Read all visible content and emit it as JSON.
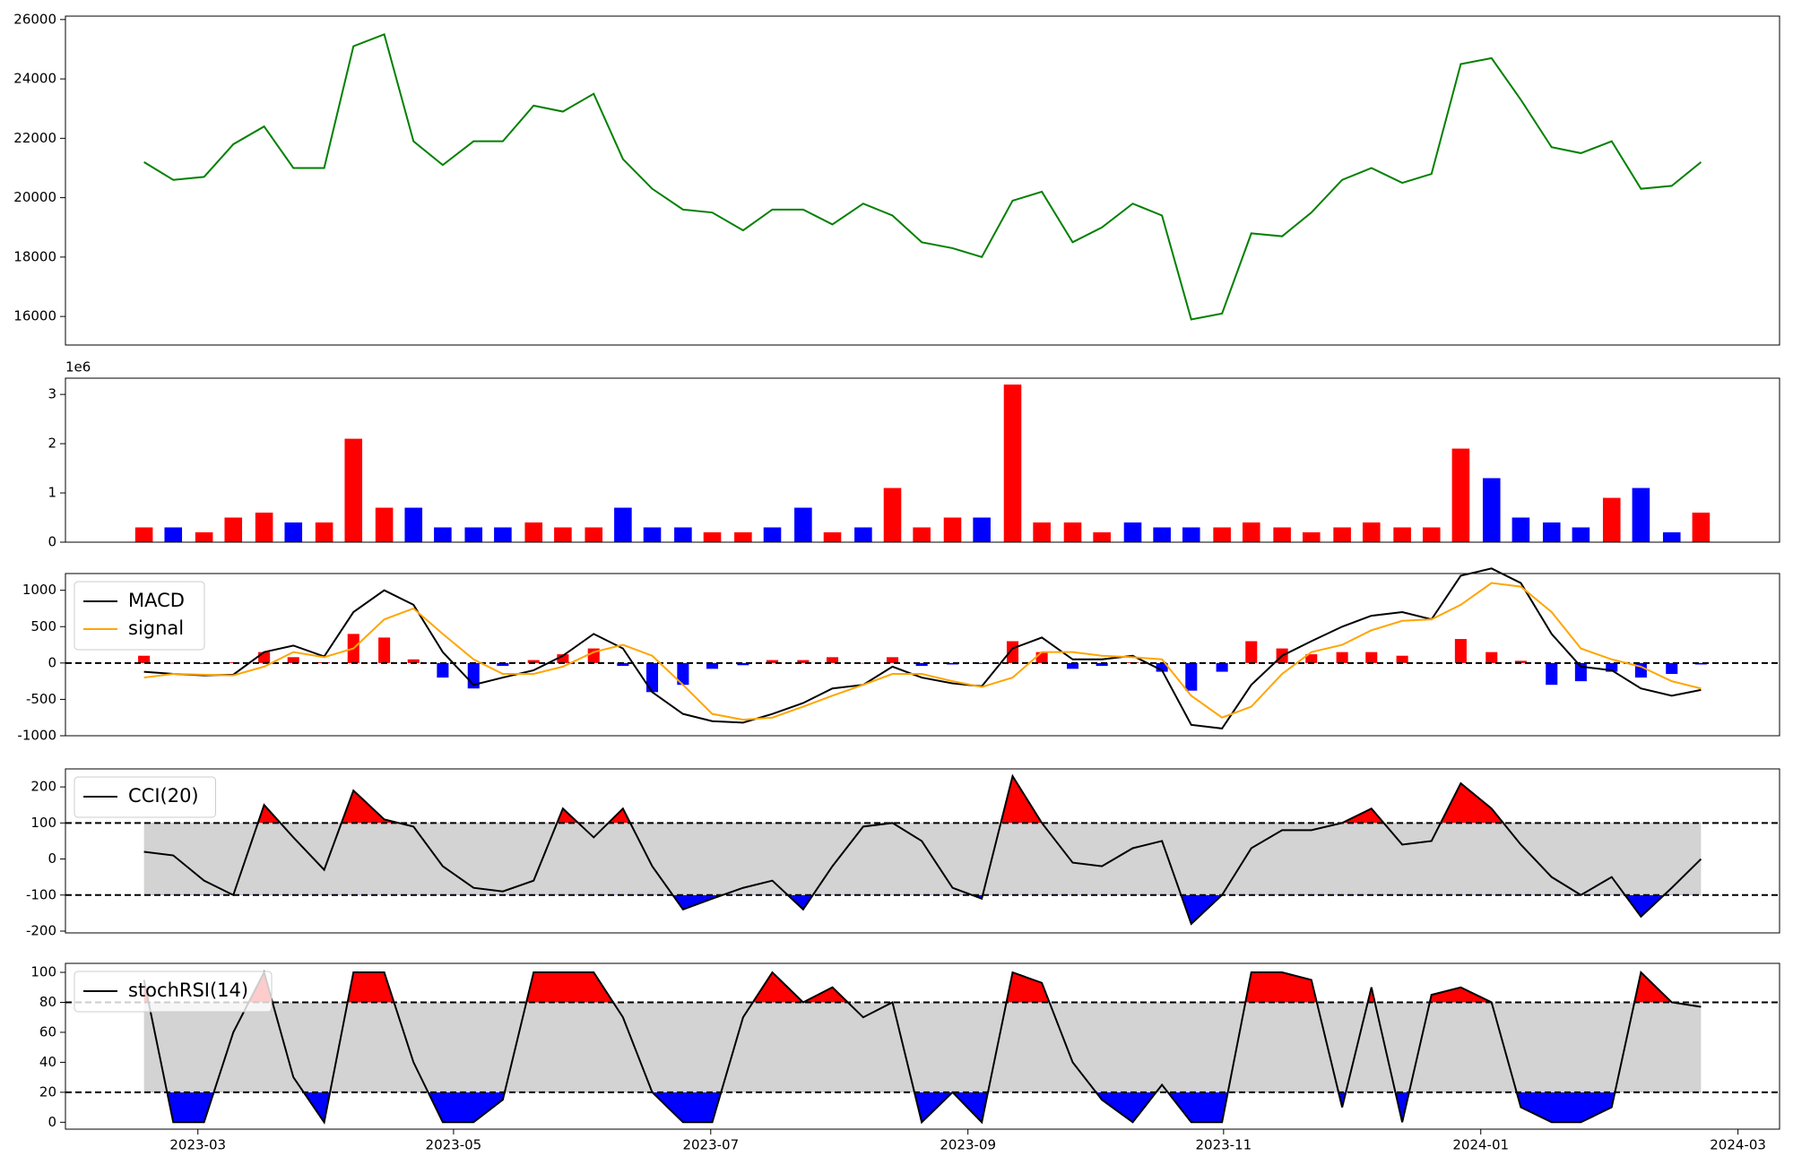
{
  "chart_data": [
    {
      "type": "line",
      "x": [
        2023.132,
        2023.151,
        2023.171,
        2023.19,
        2023.21,
        2023.229,
        2023.249,
        2023.268,
        2023.288,
        2023.307,
        2023.326,
        2023.346,
        2023.365,
        2023.385,
        2023.404,
        2023.424,
        2023.443,
        2023.462,
        2023.482,
        2023.501,
        2023.521,
        2023.54,
        2023.56,
        2023.579,
        2023.599,
        2023.618,
        2023.637,
        2023.657,
        2023.676,
        2023.696,
        2023.715,
        2023.735,
        2023.754,
        2023.774,
        2023.793,
        2023.812,
        2023.832,
        2023.851,
        2023.871,
        2023.89,
        2023.91,
        2023.929,
        2023.949,
        2023.968,
        2023.987,
        2024.007,
        2024.026,
        2024.046,
        2024.065,
        2024.085,
        2024.104,
        2024.124,
        2024.143
      ],
      "series": [
        {
          "color": "green",
          "values": [
            21200,
            20600,
            20700,
            21800,
            22400,
            21000,
            21000,
            25100,
            25500,
            21900,
            21100,
            21900,
            21900,
            23100,
            22900,
            23500,
            21300,
            20300,
            19600,
            19500,
            18900,
            19600,
            19600,
            19100,
            19800,
            19400,
            18500,
            18300,
            18000,
            19900,
            20200,
            18500,
            19000,
            19800,
            19400,
            15900,
            16100,
            18800,
            18700,
            19500,
            20600,
            21000,
            20500,
            20800,
            24500,
            24700,
            23300,
            21700,
            21500,
            21900,
            20300,
            20400,
            21200
          ]
        }
      ],
      "xlim": [
        2023.081,
        2024.194
      ],
      "ylim": [
        15038,
        26115
      ],
      "yticks": [
        16000,
        18000,
        20000,
        22000,
        24000,
        26000
      ]
    },
    {
      "type": "bar",
      "x": [
        2023.132,
        2023.151,
        2023.171,
        2023.19,
        2023.21,
        2023.229,
        2023.249,
        2023.268,
        2023.288,
        2023.307,
        2023.326,
        2023.346,
        2023.365,
        2023.385,
        2023.404,
        2023.424,
        2023.443,
        2023.462,
        2023.482,
        2023.501,
        2023.521,
        2023.54,
        2023.56,
        2023.579,
        2023.599,
        2023.618,
        2023.637,
        2023.657,
        2023.676,
        2023.696,
        2023.715,
        2023.735,
        2023.754,
        2023.774,
        2023.793,
        2023.812,
        2023.832,
        2023.851,
        2023.871,
        2023.89,
        2023.91,
        2023.929,
        2023.949,
        2023.968,
        2023.987,
        2024.007,
        2024.026,
        2024.046,
        2024.065,
        2024.085,
        2024.104,
        2024.124,
        2024.143
      ],
      "values": [
        0.3,
        0.3,
        0.2,
        0.5,
        0.6,
        0.4,
        0.4,
        2.1,
        0.7,
        0.7,
        0.3,
        0.3,
        0.3,
        0.4,
        0.3,
        0.3,
        0.7,
        0.3,
        0.3,
        0.2,
        0.2,
        0.3,
        0.7,
        0.2,
        0.3,
        1.1,
        0.3,
        0.5,
        0.5,
        3.2,
        0.4,
        0.4,
        0.2,
        0.4,
        0.3,
        0.3,
        0.3,
        0.4,
        0.3,
        0.2,
        0.3,
        0.4,
        0.3,
        0.3,
        1.9,
        1.3,
        0.5,
        0.4,
        0.3,
        0.9,
        1.1,
        0.2,
        0.6
      ],
      "colors": [
        "red",
        "blue",
        "red",
        "red",
        "red",
        "blue",
        "red",
        "red",
        "red",
        "blue",
        "blue",
        "blue",
        "blue",
        "red",
        "red",
        "red",
        "blue",
        "blue",
        "blue",
        "red",
        "red",
        "blue",
        "blue",
        "red",
        "blue",
        "red",
        "red",
        "red",
        "blue",
        "red",
        "red",
        "red",
        "red",
        "blue",
        "blue",
        "blue",
        "red",
        "red",
        "red",
        "red",
        "red",
        "red",
        "red",
        "red",
        "red",
        "blue",
        "blue",
        "blue",
        "blue",
        "red",
        "blue",
        "blue",
        "red"
      ],
      "offset_label": "1e6",
      "xlim": [
        2023.081,
        2024.194
      ],
      "ylim": [
        0,
        3.33
      ],
      "yticks": [
        0,
        1,
        2,
        3
      ]
    },
    {
      "type": "line",
      "x": [
        2023.132,
        2023.151,
        2023.171,
        2023.19,
        2023.21,
        2023.229,
        2023.249,
        2023.268,
        2023.288,
        2023.307,
        2023.326,
        2023.346,
        2023.365,
        2023.385,
        2023.404,
        2023.424,
        2023.443,
        2023.462,
        2023.482,
        2023.501,
        2023.521,
        2023.54,
        2023.56,
        2023.579,
        2023.599,
        2023.618,
        2023.637,
        2023.657,
        2023.676,
        2023.696,
        2023.715,
        2023.735,
        2023.754,
        2023.774,
        2023.793,
        2023.812,
        2023.832,
        2023.851,
        2023.871,
        2023.89,
        2023.91,
        2023.929,
        2023.949,
        2023.968,
        2023.987,
        2024.007,
        2024.026,
        2024.046,
        2024.065,
        2024.085,
        2024.104,
        2024.124,
        2024.143
      ],
      "series": [
        {
          "style": "bar",
          "color_up": "red",
          "color_down": "blue",
          "values": [
            100,
            0,
            -10,
            10,
            150,
            80,
            10,
            400,
            350,
            50,
            -200,
            -350,
            -40,
            40,
            120,
            200,
            -40,
            -400,
            -300,
            -80,
            -30,
            40,
            40,
            80,
            0,
            80,
            -40,
            -20,
            -10,
            300,
            150,
            -80,
            -40,
            10,
            -120,
            -380,
            -120,
            300,
            200,
            120,
            150,
            150,
            100,
            0,
            330,
            150,
            30,
            -300,
            -250,
            -120,
            -200,
            -150,
            -20
          ]
        },
        {
          "name": "MACD",
          "color": "black",
          "values": [
            -120,
            -150,
            -170,
            -160,
            150,
            240,
            90,
            700,
            1000,
            800,
            150,
            -300,
            -200,
            -100,
            100,
            400,
            200,
            -400,
            -700,
            -800,
            -820,
            -700,
            -550,
            -350,
            -300,
            -50,
            -200,
            -280,
            -320,
            200,
            350,
            50,
            50,
            100,
            -100,
            -850,
            -900,
            -300,
            100,
            300,
            500,
            650,
            700,
            600,
            1200,
            1300,
            1100,
            400,
            -50,
            -100,
            -350,
            -450,
            -370
          ]
        },
        {
          "name": "signal",
          "color": "orange",
          "values": [
            -200,
            -150,
            -160,
            -170,
            -50,
            150,
            80,
            200,
            600,
            750,
            400,
            50,
            -150,
            -150,
            -50,
            150,
            250,
            100,
            -300,
            -700,
            -780,
            -750,
            -600,
            -450,
            -300,
            -150,
            -150,
            -250,
            -330,
            -200,
            150,
            150,
            100,
            80,
            50,
            -450,
            -750,
            -600,
            -150,
            150,
            250,
            450,
            580,
            600,
            800,
            1100,
            1050,
            700,
            200,
            50,
            -50,
            -250,
            -350
          ]
        }
      ],
      "hlines": [
        0
      ],
      "legend": "upper-left",
      "xlim": [
        2023.081,
        2024.194
      ],
      "ylim": [
        -1000,
        1230
      ],
      "yticks": [
        -1000,
        -500,
        0,
        500,
        1000
      ]
    },
    {
      "type": "line",
      "x": [
        2023.132,
        2023.151,
        2023.171,
        2023.19,
        2023.21,
        2023.229,
        2023.249,
        2023.268,
        2023.288,
        2023.307,
        2023.326,
        2023.346,
        2023.365,
        2023.385,
        2023.404,
        2023.424,
        2023.443,
        2023.462,
        2023.482,
        2023.501,
        2023.521,
        2023.54,
        2023.56,
        2023.579,
        2023.599,
        2023.618,
        2023.637,
        2023.657,
        2023.676,
        2023.696,
        2023.715,
        2023.735,
        2023.754,
        2023.774,
        2023.793,
        2023.812,
        2023.832,
        2023.851,
        2023.871,
        2023.89,
        2023.91,
        2023.929,
        2023.949,
        2023.968,
        2023.987,
        2024.007,
        2024.026,
        2024.046,
        2024.065,
        2024.085,
        2024.104,
        2024.124,
        2024.143
      ],
      "series": [
        {
          "name": "CCI(20)",
          "color": "black",
          "values": [
            20,
            10,
            -60,
            -100,
            150,
            60,
            -30,
            190,
            110,
            90,
            -20,
            -80,
            -90,
            -60,
            140,
            60,
            140,
            -20,
            -140,
            -110,
            -80,
            -60,
            -140,
            -20,
            90,
            100,
            50,
            -80,
            -110,
            230,
            100,
            -10,
            -20,
            30,
            50,
            -180,
            -100,
            30,
            80,
            80,
            100,
            140,
            40,
            50,
            210,
            140,
            40,
            -50,
            -100,
            -50,
            -160,
            -80,
            0
          ]
        }
      ],
      "band": {
        "range": [
          -100,
          100
        ],
        "color": "lightgray"
      },
      "fills": [
        {
          "above": 100,
          "color": "red"
        },
        {
          "below": -100,
          "color": "blue"
        }
      ],
      "hlines": [
        -100,
        100
      ],
      "legend": "upper-left",
      "xlim": [
        2023.081,
        2024.194
      ],
      "ylim": [
        -205,
        250
      ],
      "yticks": [
        -200,
        -100,
        0,
        100,
        200
      ]
    },
    {
      "type": "line",
      "x": [
        2023.132,
        2023.151,
        2023.171,
        2023.19,
        2023.21,
        2023.229,
        2023.249,
        2023.268,
        2023.288,
        2023.307,
        2023.326,
        2023.346,
        2023.365,
        2023.385,
        2023.404,
        2023.424,
        2023.443,
        2023.462,
        2023.482,
        2023.501,
        2023.521,
        2023.54,
        2023.56,
        2023.579,
        2023.599,
        2023.618,
        2023.637,
        2023.657,
        2023.676,
        2023.696,
        2023.715,
        2023.735,
        2023.754,
        2023.774,
        2023.793,
        2023.812,
        2023.832,
        2023.851,
        2023.871,
        2023.89,
        2023.91,
        2023.929,
        2023.949,
        2023.968,
        2023.987,
        2024.007,
        2024.026,
        2024.046,
        2024.065,
        2024.085,
        2024.104,
        2024.124,
        2024.143
      ],
      "series": [
        {
          "name": "stochRSI(14)",
          "color": "black",
          "values": [
            95,
            0,
            0,
            60,
            100,
            30,
            0,
            100,
            100,
            40,
            0,
            0,
            15,
            100,
            100,
            100,
            70,
            20,
            0,
            0,
            70,
            100,
            80,
            90,
            70,
            80,
            0,
            20,
            0,
            100,
            93,
            40,
            15,
            0,
            25,
            0,
            0,
            100,
            100,
            95,
            10,
            90,
            0,
            85,
            90,
            80,
            10,
            0,
            0,
            10,
            100,
            80,
            77
          ]
        }
      ],
      "band": {
        "range": [
          20,
          80
        ],
        "color": "lightgray"
      },
      "fills": [
        {
          "above": 80,
          "color": "red"
        },
        {
          "below": 20,
          "color": "blue"
        }
      ],
      "hlines": [
        20,
        80
      ],
      "legend": "upper-left",
      "xlim": [
        2023.081,
        2024.194
      ],
      "ylim": [
        -4.6,
        106
      ],
      "yticks": [
        0,
        20,
        40,
        60,
        80,
        100
      ],
      "xticks": [
        {
          "value": 2023.167,
          "label": "2023-03"
        },
        {
          "value": 2023.333,
          "label": "2023-05"
        },
        {
          "value": 2023.5,
          "label": "2023-07"
        },
        {
          "value": 2023.667,
          "label": "2023-09"
        },
        {
          "value": 2023.833,
          "label": "2023-11"
        },
        {
          "value": 2024.0,
          "label": "2024-01"
        },
        {
          "value": 2024.167,
          "label": "2024-03"
        }
      ]
    }
  ]
}
